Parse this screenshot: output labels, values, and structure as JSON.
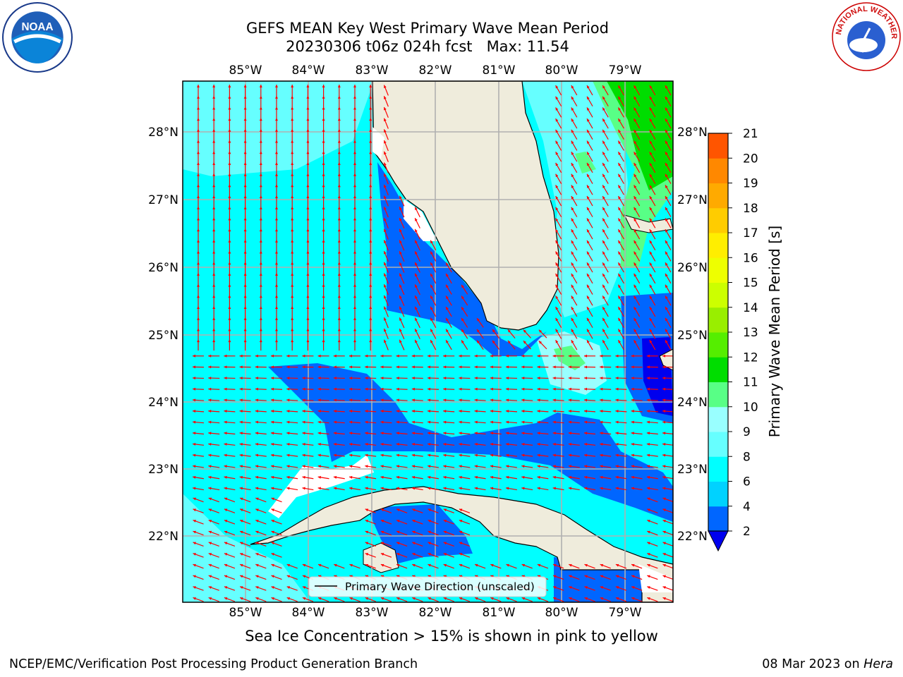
{
  "title_line1": "GEFS MEAN Key West Primary Wave Mean Period",
  "title_line2": "20230306 t06z 024h fcst   Max: 11.54",
  "caption": "Sea Ice Concentration > 15% is shown in pink to yellow",
  "footer_left": "NCEP/EMC/Verification Post Processing Product Generation Branch",
  "footer_date": "08 Mar 2023 on ",
  "footer_host": "Hera",
  "logos": {
    "left": "NOAA",
    "right_text": "NATIONAL WEATHER SERVICE"
  },
  "legend_label": "Primary Wave Direction (unscaled)",
  "colorbar": {
    "label": "Primary Wave Mean Period [s]",
    "ticks": [
      "2",
      "4",
      "6",
      "8",
      "9",
      "10",
      "11",
      "12",
      "13",
      "14",
      "15",
      "16",
      "17",
      "18",
      "19",
      "20",
      "21"
    ],
    "colors": [
      "#0066ff",
      "#00d2ff",
      "#00ffff",
      "#66ffff",
      "#99ffff",
      "#58ff86",
      "#00dd00",
      "#55ee00",
      "#99ee00",
      "#ccff00",
      "#eeff00",
      "#ffee00",
      "#ffcc00",
      "#ffaa00",
      "#ff8800",
      "#ff5500",
      "#ff2200",
      "#ff0000"
    ],
    "extend_color": "#0000ee"
  },
  "map": {
    "lon_labels": [
      "85°W",
      "84°W",
      "83°W",
      "82°W",
      "81°W",
      "80°W",
      "79°W"
    ],
    "lat_labels": [
      "28°N",
      "27°N",
      "26°N",
      "25°N",
      "24°N",
      "23°N",
      "22°N"
    ],
    "arrow_color": "#ff0000",
    "land_color": "#efecdc"
  }
}
